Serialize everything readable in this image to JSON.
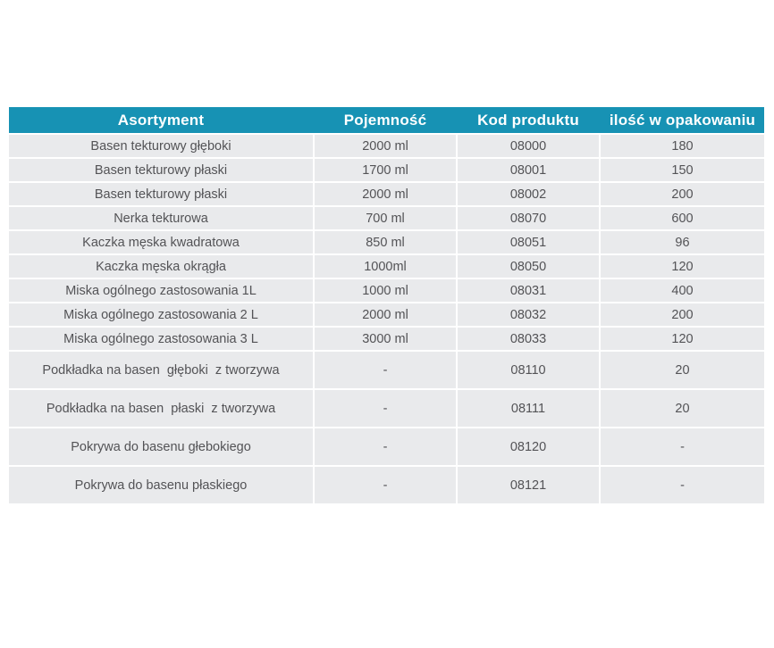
{
  "colors": {
    "header_bg": "#1792b4",
    "header_text": "#ffffff",
    "cell_bg": "#e9eaec",
    "cell_text": "#535356",
    "separator": "#ffffff",
    "page_bg": "#ffffff"
  },
  "table": {
    "headers": [
      "Asortyment",
      "Pojemność",
      "Kod produktu",
      "ilość w opakowaniu"
    ],
    "rows": [
      {
        "asortyment": "Basen tekturowy głęboki",
        "pojemnosc": "2000 ml",
        "kod": "08000",
        "ilosc": "180"
      },
      {
        "asortyment": "Basen tekturowy płaski",
        "pojemnosc": "1700 ml",
        "kod": "08001",
        "ilosc": "150"
      },
      {
        "asortyment": "Basen tekturowy płaski",
        "pojemnosc": "2000 ml",
        "kod": "08002",
        "ilosc": "200"
      },
      {
        "asortyment": "Nerka tekturowa",
        "pojemnosc": "700 ml",
        "kod": "08070",
        "ilosc": "600"
      },
      {
        "asortyment": "Kaczka męska kwadratowa",
        "pojemnosc": "850 ml",
        "kod": "08051",
        "ilosc": "96"
      },
      {
        "asortyment": "Kaczka męska okrągła",
        "pojemnosc": "1000ml",
        "kod": "08050",
        "ilosc": "120"
      },
      {
        "asortyment": "Miska ogólnego zastosowania 1L",
        "pojemnosc": "1000 ml",
        "kod": "08031",
        "ilosc": "400"
      },
      {
        "asortyment": "Miska ogólnego zastosowania 2 L",
        "pojemnosc": "2000 ml",
        "kod": "08032",
        "ilosc": "200"
      },
      {
        "asortyment": "Miska ogólnego zastosowania 3 L",
        "pojemnosc": "3000 ml",
        "kod": "08033",
        "ilosc": "120"
      },
      {
        "asortyment": "Podkładka na basen  głęboki  z tworzywa",
        "pojemnosc": "-",
        "kod": "08110",
        "ilosc": "20"
      },
      {
        "asortyment": "Podkładka na basen  płaski  z tworzywa",
        "pojemnosc": "-",
        "kod": "08111",
        "ilosc": "20"
      },
      {
        "asortyment": "Pokrywa do basenu głebokiego",
        "pojemnosc": "-",
        "kod": "08120",
        "ilosc": "-"
      },
      {
        "asortyment": "Pokrywa do basenu płaskiego",
        "pojemnosc": "-",
        "kod": "08121",
        "ilosc": "-"
      }
    ]
  }
}
